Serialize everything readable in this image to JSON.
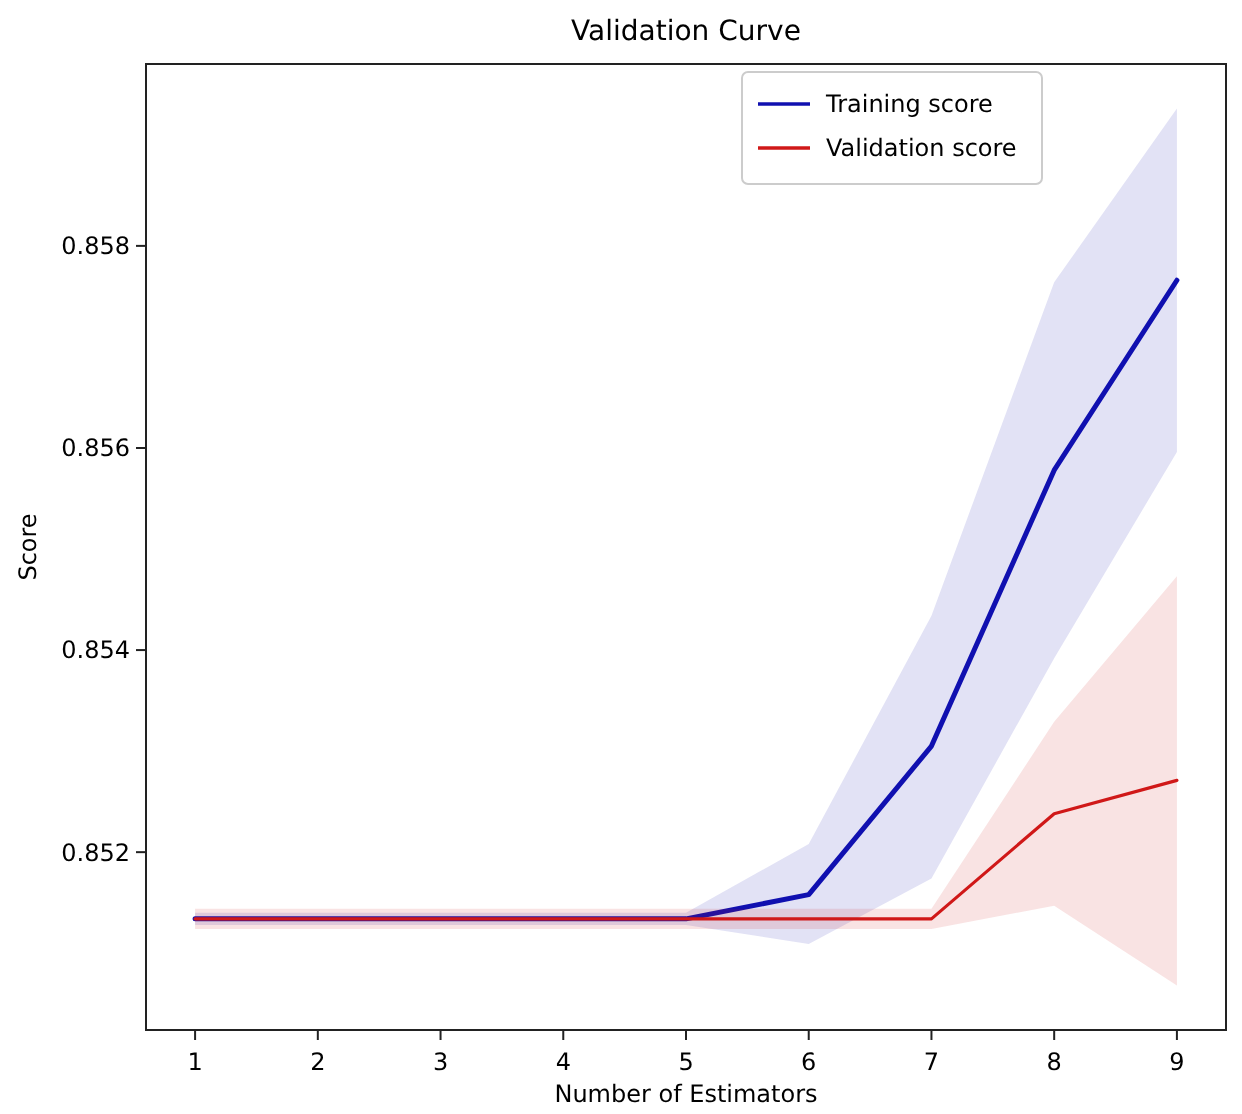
{
  "chart_data": {
    "type": "line",
    "title": "Validation Curve",
    "xlabel": "Number of Estimators",
    "ylabel": "Score",
    "x": [
      1,
      2,
      3,
      4,
      5,
      6,
      7,
      8,
      9
    ],
    "series": [
      {
        "name": "Training score",
        "color": "#1010b0",
        "values": [
          0.85134,
          0.85134,
          0.85134,
          0.85134,
          0.85134,
          0.85158,
          0.85305,
          0.85578,
          0.85766
        ],
        "lower": [
          0.85128,
          0.85128,
          0.85128,
          0.85128,
          0.85128,
          0.85109,
          0.85174,
          0.85392,
          0.85596
        ],
        "upper": [
          0.8514,
          0.8514,
          0.8514,
          0.8514,
          0.8514,
          0.85208,
          0.85434,
          0.85764,
          0.85936
        ]
      },
      {
        "name": "Validation score",
        "color": "#d01818",
        "values": [
          0.85134,
          0.85134,
          0.85134,
          0.85134,
          0.85134,
          0.85134,
          0.85134,
          0.85238,
          0.85271
        ],
        "lower": [
          0.85124,
          0.85124,
          0.85124,
          0.85124,
          0.85124,
          0.85124,
          0.85124,
          0.85147,
          0.85068
        ],
        "upper": [
          0.85144,
          0.85144,
          0.85144,
          0.85144,
          0.85144,
          0.85144,
          0.85144,
          0.85329,
          0.85473
        ]
      }
    ],
    "xlim": [
      0.6,
      9.4
    ],
    "xticks": [
      1,
      2,
      3,
      4,
      5,
      6,
      7,
      8,
      9
    ],
    "ylim": [
      0.85024,
      0.8598
    ],
    "yticks": [
      0.852,
      0.854,
      0.856,
      0.858
    ],
    "grid": false,
    "legend": "top right",
    "marker": "none",
    "line_style": "solid"
  }
}
